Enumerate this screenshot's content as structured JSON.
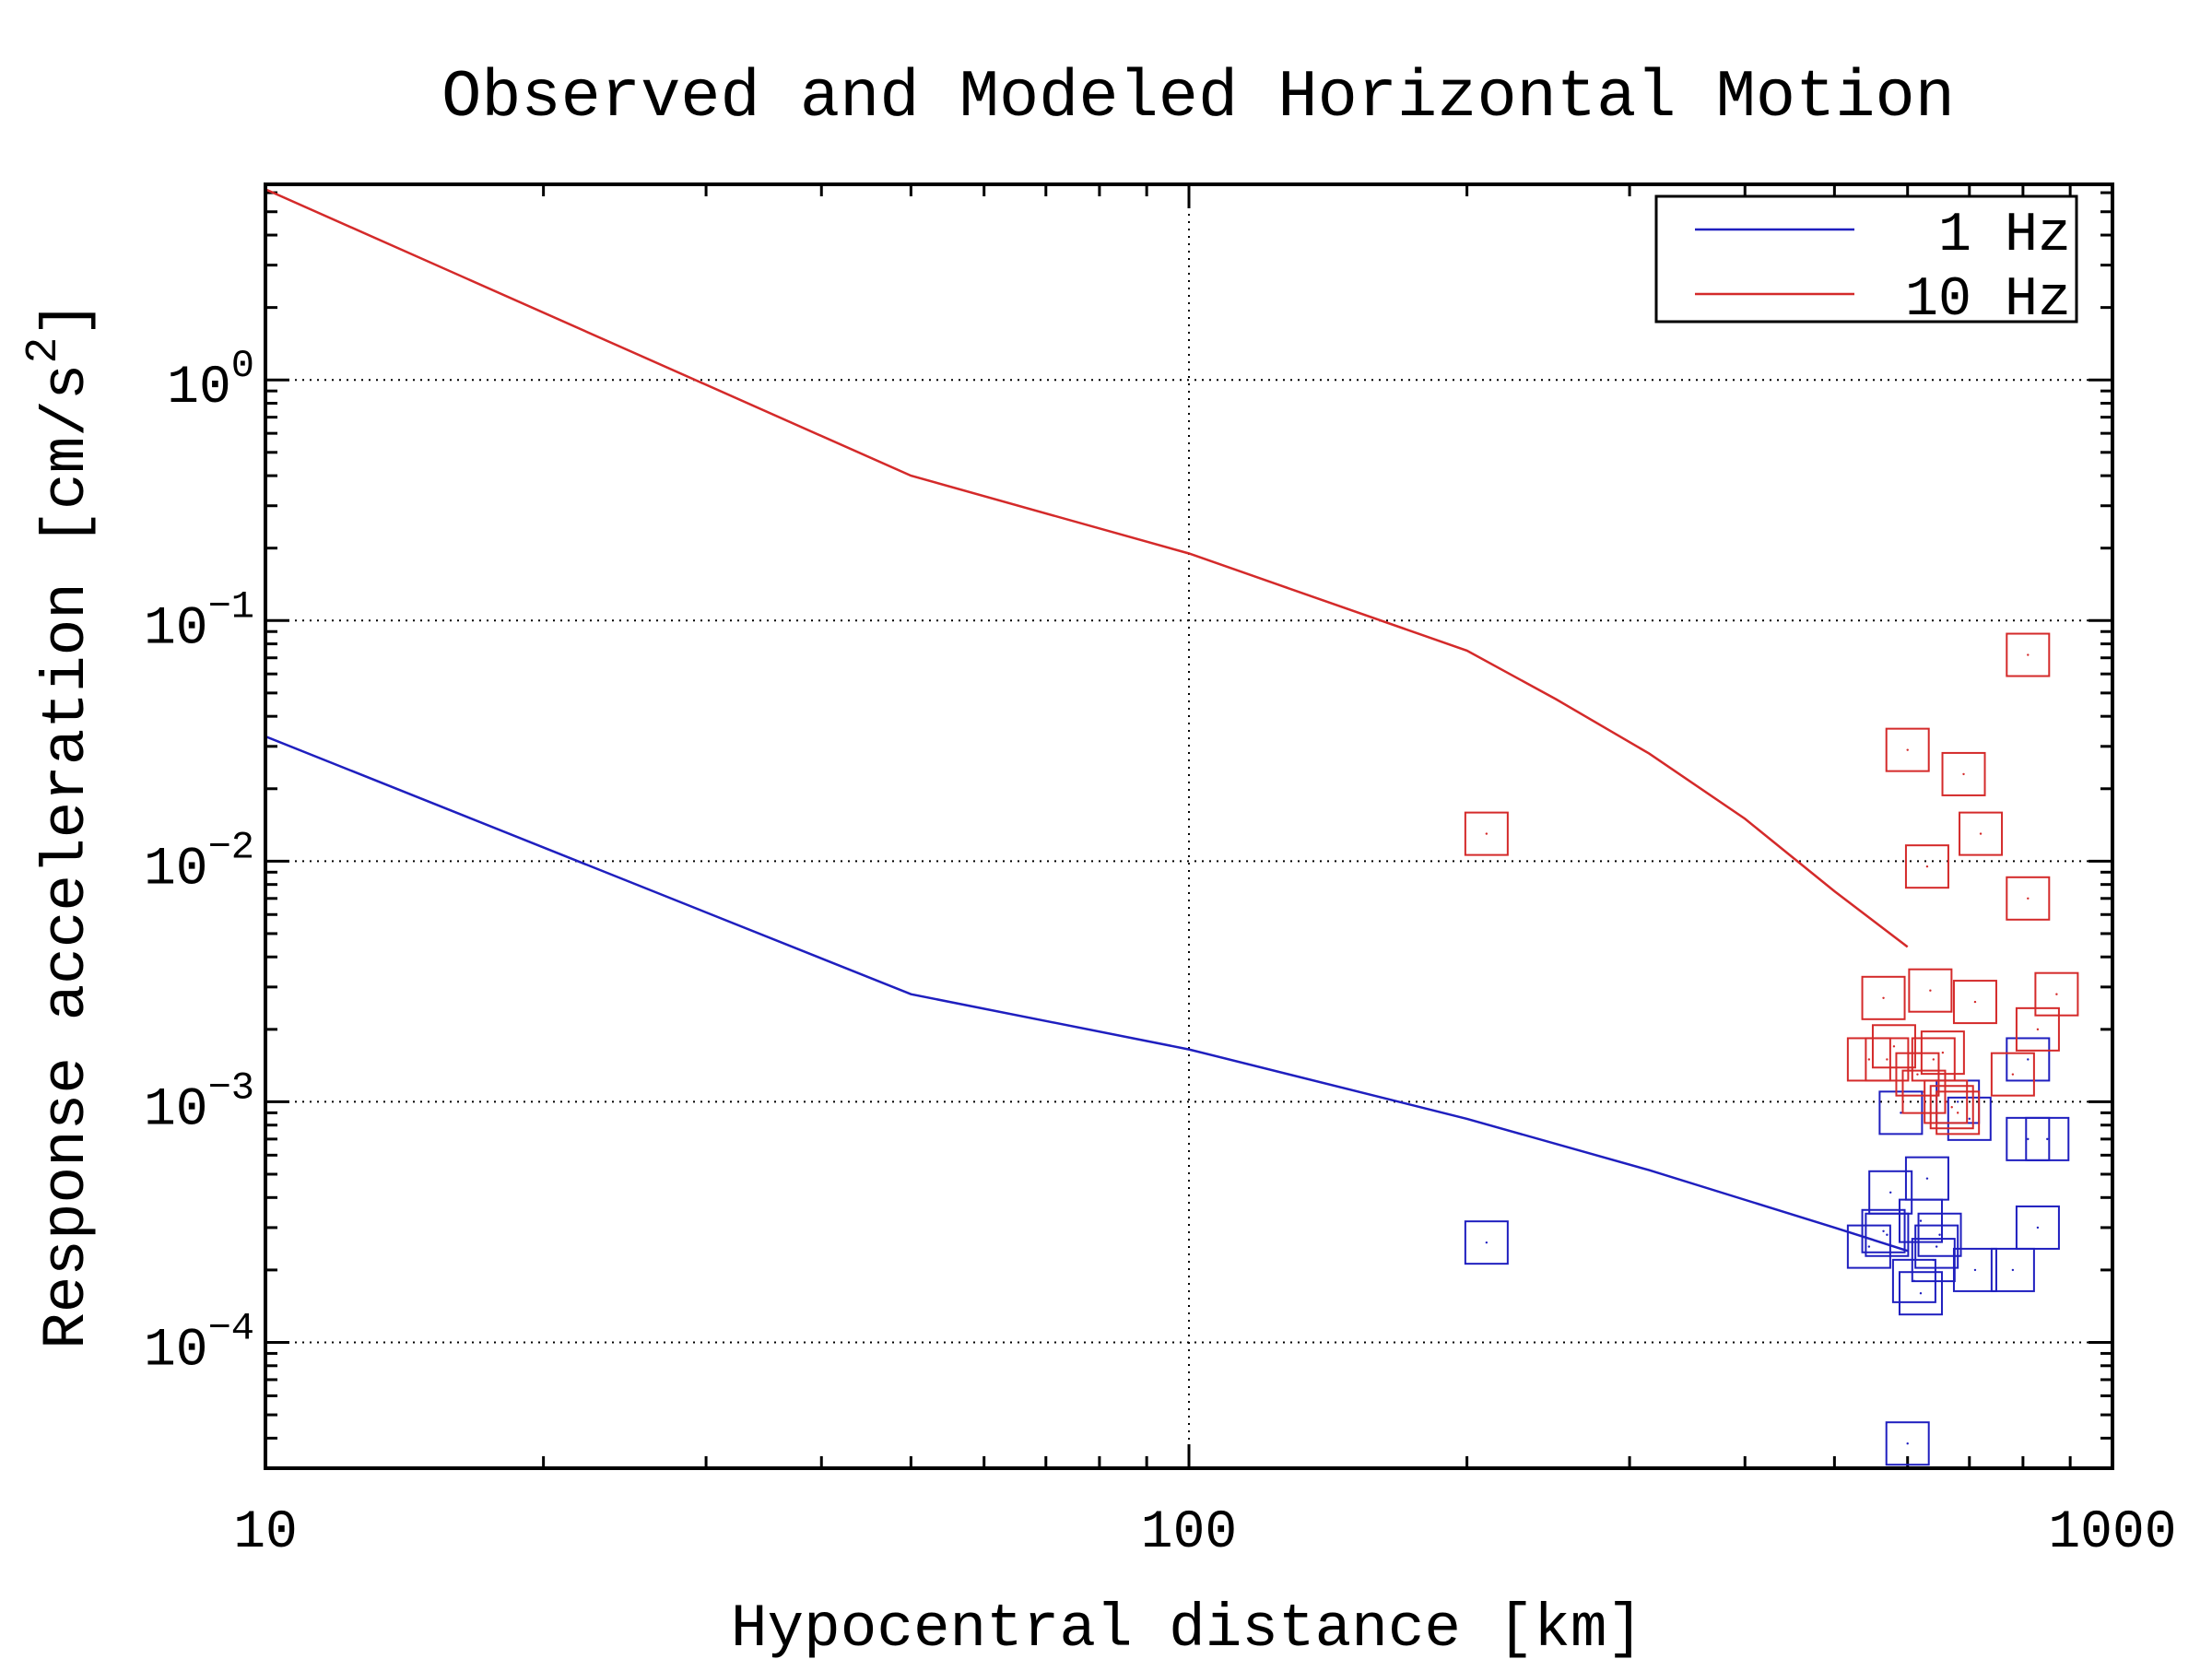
{
  "chart_data": {
    "type": "scatter",
    "title": "Observed and Modeled Horizontal Motion",
    "xlabel": "Hypocentral distance [km]",
    "ylabel_main": "Response acceleration [cm/s",
    "ylabel_sup": "2",
    "ylabel_end": "]",
    "x_scale": "log",
    "y_scale": "log",
    "xlim": [
      10,
      1000
    ],
    "ylim": [
      3e-05,
      6.5
    ],
    "x_ticks": [
      {
        "value": 10,
        "label": "10"
      },
      {
        "value": 100,
        "label": "100"
      },
      {
        "value": 1000,
        "label": "1000"
      }
    ],
    "y_ticks": [
      {
        "value": 0.0001,
        "base": "10",
        "exp": "−4"
      },
      {
        "value": 0.001,
        "base": "10",
        "exp": "−3"
      },
      {
        "value": 0.01,
        "base": "10",
        "exp": "−2"
      },
      {
        "value": 0.1,
        "base": "10",
        "exp": "−1"
      },
      {
        "value": 1,
        "base": "10",
        "exp": "0"
      }
    ],
    "grid": "dotted, at major ticks",
    "legend_position": "top-right",
    "legend": [
      {
        "label": "1 Hz",
        "color": "#1f1fbf"
      },
      {
        "label": "10 Hz",
        "color": "#d42a2a"
      }
    ],
    "model_lines": [
      {
        "name": "1 Hz",
        "color": "#1f1fbf",
        "points": [
          [
            10,
            0.033
          ],
          [
            50,
            0.0028
          ],
          [
            100,
            0.00165
          ],
          [
            200,
            0.00085
          ],
          [
            315,
            0.00052
          ],
          [
            500,
            0.0003
          ],
          [
            600,
            0.00024
          ]
        ]
      },
      {
        "name": "10 Hz",
        "color": "#d42a2a",
        "points": [
          [
            10,
            6.2
          ],
          [
            50,
            0.4
          ],
          [
            100,
            0.19
          ],
          [
            200,
            0.075
          ],
          [
            250,
            0.047
          ],
          [
            315,
            0.028
          ],
          [
            400,
            0.015
          ],
          [
            500,
            0.0075
          ],
          [
            600,
            0.0044
          ]
        ]
      }
    ],
    "observed": [
      {
        "name": "1 Hz",
        "color": "#1f1fbf",
        "points": [
          [
            210,
            0.00026
          ],
          [
            545,
            0.00025
          ],
          [
            565,
            0.00029
          ],
          [
            570,
            0.00028
          ],
          [
            575,
            0.00042
          ],
          [
            590,
            0.0009
          ],
          [
            610,
            0.00018
          ],
          [
            620,
            0.00016
          ],
          [
            620,
            0.00032
          ],
          [
            630,
            0.00048
          ],
          [
            640,
            0.00022
          ],
          [
            645,
            0.00025
          ],
          [
            650,
            0.00028
          ],
          [
            680,
            0.001
          ],
          [
            700,
            0.00085
          ],
          [
            710,
            0.0002
          ],
          [
            780,
            0.0002
          ],
          [
            810,
            0.0007
          ],
          [
            810,
            0.0015
          ],
          [
            830,
            0.0003
          ],
          [
            850,
            0.0007
          ],
          [
            600,
            3.8e-05
          ]
        ]
      },
      {
        "name": "10 Hz",
        "color": "#d42a2a",
        "points": [
          [
            210,
            0.013
          ],
          [
            545,
            0.0015
          ],
          [
            565,
            0.0027
          ],
          [
            570,
            0.0015
          ],
          [
            580,
            0.0017
          ],
          [
            600,
            0.029
          ],
          [
            615,
            0.0013
          ],
          [
            625,
            0.0011
          ],
          [
            630,
            0.0095
          ],
          [
            635,
            0.0029
          ],
          [
            640,
            0.0015
          ],
          [
            655,
            0.0016
          ],
          [
            660,
            0.001
          ],
          [
            670,
            0.00095
          ],
          [
            680,
            0.0009
          ],
          [
            690,
            0.023
          ],
          [
            710,
            0.0026
          ],
          [
            720,
            0.013
          ],
          [
            780,
            0.0013
          ],
          [
            810,
            0.072
          ],
          [
            810,
            0.007
          ],
          [
            830,
            0.002
          ],
          [
            870,
            0.0028
          ]
        ]
      }
    ]
  }
}
